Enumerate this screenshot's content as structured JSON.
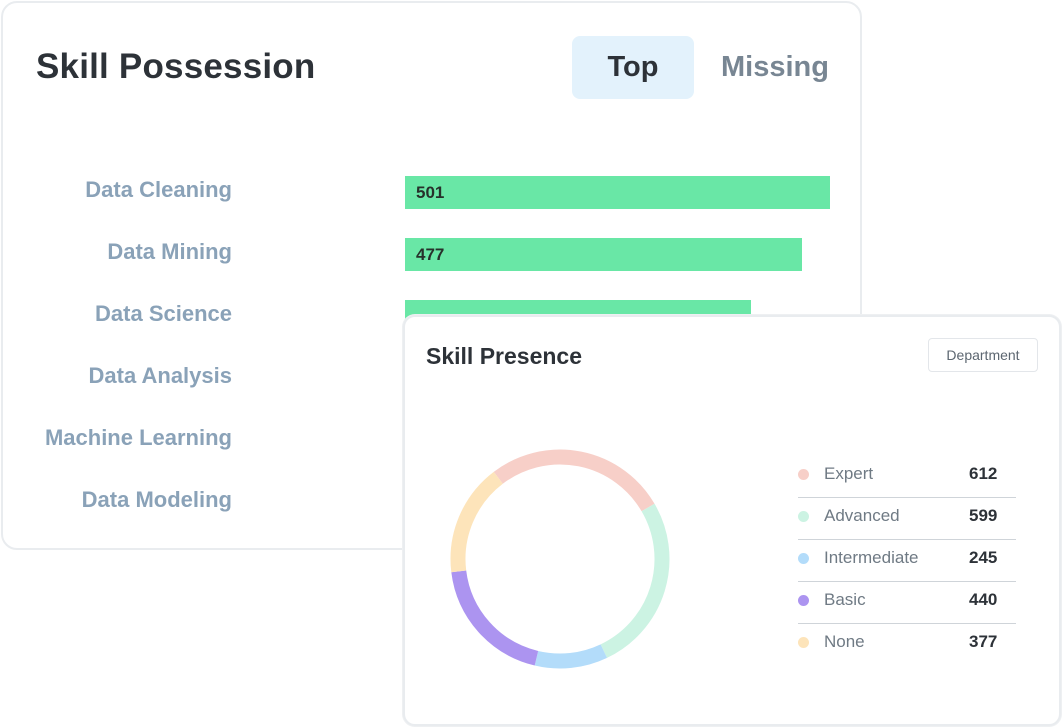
{
  "possession": {
    "title": "Skill Possession",
    "tabs": [
      {
        "label": "Top",
        "active": true
      },
      {
        "label": "Missing",
        "active": false
      }
    ],
    "chart_data": {
      "type": "bar",
      "orientation": "horizontal",
      "categories": [
        "Data Cleaning",
        "Data Mining",
        "Data Science",
        "Data Analysis",
        "Machine Learning",
        "Data Modeling"
      ],
      "values": [
        501,
        477,
        null,
        null,
        null,
        null
      ],
      "value_labels": [
        "501",
        "477",
        "",
        "",
        "",
        ""
      ],
      "visible_fraction": [
        1,
        0.935,
        0.813,
        0,
        0,
        0
      ],
      "bar_color": "#69e7a6"
    }
  },
  "presence": {
    "title": "Skill Presence",
    "filter_label": "Department",
    "chart_data": {
      "type": "pie",
      "style": "donut",
      "series": [
        {
          "name": "Expert",
          "value": 612,
          "color": "#f7cfc8"
        },
        {
          "name": "Advanced",
          "value": 599,
          "color": "#ccf3e3"
        },
        {
          "name": "Intermediate",
          "value": 245,
          "color": "#b3dcfa"
        },
        {
          "name": "Basic",
          "value": 440,
          "color": "#ac94f0"
        },
        {
          "name": "None",
          "value": 377,
          "color": "#fde4ba"
        }
      ],
      "legend_position": "right"
    }
  }
}
